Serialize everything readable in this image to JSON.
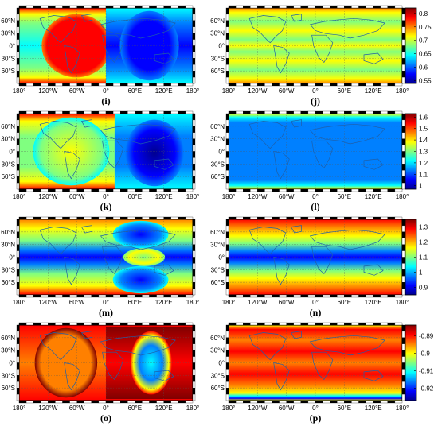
{
  "chart_data": {
    "type": "heatmap",
    "map_axes": {
      "x_ticks": [
        "180°",
        "120°W",
        "60°W",
        "0°",
        "60°E",
        "120°E",
        "180°"
      ],
      "y_ticks": [
        "60°N",
        "30°N",
        "0°",
        "30°S",
        "60°S"
      ]
    },
    "colormap": [
      "#00008f",
      "#0000ff",
      "#0080ff",
      "#00ffff",
      "#80ff80",
      "#ffff00",
      "#ff8000",
      "#ff0000",
      "#800000"
    ],
    "colorbars": [
      {
        "row": 1,
        "ticks": [
          0.8,
          0.75,
          0.7,
          0.65,
          0.6,
          0.55
        ],
        "range": [
          0.54,
          0.82
        ]
      },
      {
        "row": 2,
        "ticks": [
          1.6,
          1.5,
          1.4,
          1.3,
          1.2,
          1.1,
          1
        ],
        "range": [
          0.97,
          1.63
        ]
      },
      {
        "row": 3,
        "ticks": [
          1.3,
          1.2,
          1.1,
          1,
          0.9
        ],
        "range": [
          0.85,
          1.35
        ]
      },
      {
        "row": 4,
        "ticks": [
          -0.89,
          -0.9,
          -0.91,
          -0.92
        ],
        "range": [
          -0.927,
          -0.884
        ]
      }
    ],
    "panels": [
      {
        "id": "i",
        "label": "(i)"
      },
      {
        "id": "j",
        "label": "(j)"
      },
      {
        "id": "k",
        "label": "(k)"
      },
      {
        "id": "l",
        "label": "(l)"
      },
      {
        "id": "m",
        "label": "(m)"
      },
      {
        "id": "n",
        "label": "(n)"
      },
      {
        "id": "o",
        "label": "(o)"
      },
      {
        "id": "p",
        "label": "(p)"
      }
    ]
  }
}
